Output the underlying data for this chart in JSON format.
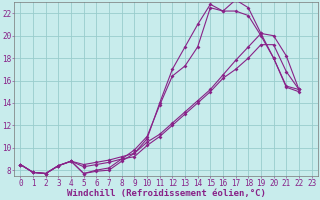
{
  "background_color": "#c8ecec",
  "line_color": "#882288",
  "grid_color": "#99cccc",
  "xlabel": "Windchill (Refroidissement éolien,°C)",
  "xlim": [
    -0.5,
    23.5
  ],
  "ylim": [
    7.5,
    23.0
  ],
  "xticks": [
    0,
    1,
    2,
    3,
    4,
    5,
    6,
    7,
    8,
    9,
    10,
    11,
    12,
    13,
    14,
    15,
    16,
    17,
    18,
    19,
    20,
    21,
    22,
    23
  ],
  "yticks": [
    8,
    10,
    12,
    14,
    16,
    18,
    20,
    22
  ],
  "series": [
    {
      "x": [
        0,
        1,
        2,
        3,
        4,
        5,
        6,
        7,
        8,
        9,
        10,
        11,
        12,
        13,
        14,
        15,
        16,
        17,
        18,
        19,
        20,
        21,
        22
      ],
      "y": [
        8.5,
        7.8,
        7.7,
        8.4,
        8.8,
        7.7,
        7.9,
        8.0,
        8.8,
        9.5,
        10.8,
        14.0,
        17.0,
        19.0,
        21.0,
        22.8,
        22.2,
        22.2,
        21.8,
        20.0,
        18.0,
        15.5,
        15.2
      ]
    },
    {
      "x": [
        0,
        1,
        2,
        3,
        4,
        5,
        6,
        7,
        8,
        9,
        10,
        11,
        12,
        13,
        14,
        15,
        16,
        17,
        18,
        19,
        20,
        21,
        22
      ],
      "y": [
        8.5,
        7.8,
        7.7,
        8.4,
        8.8,
        7.7,
        8.0,
        8.2,
        9.0,
        9.8,
        11.0,
        13.8,
        16.4,
        17.3,
        19.0,
        22.5,
        22.2,
        23.2,
        22.5,
        20.2,
        18.0,
        15.4,
        15.0
      ]
    },
    {
      "x": [
        0,
        1,
        2,
        3,
        4,
        5,
        6,
        7,
        8,
        9,
        10,
        11,
        12,
        13,
        14,
        15,
        16,
        17,
        18,
        19,
        20,
        21,
        22
      ],
      "y": [
        8.5,
        7.8,
        7.7,
        8.4,
        8.8,
        8.5,
        8.7,
        8.9,
        9.2,
        9.5,
        10.5,
        11.2,
        12.2,
        13.2,
        14.2,
        15.2,
        16.5,
        17.8,
        19.0,
        20.2,
        20.0,
        18.2,
        15.2
      ]
    },
    {
      "x": [
        0,
        1,
        2,
        3,
        4,
        5,
        6,
        7,
        8,
        9,
        10,
        11,
        12,
        13,
        14,
        15,
        16,
        17,
        18,
        19,
        20,
        21,
        22
      ],
      "y": [
        8.5,
        7.8,
        7.7,
        8.4,
        8.8,
        8.3,
        8.5,
        8.7,
        9.0,
        9.2,
        10.2,
        11.0,
        12.0,
        13.0,
        14.0,
        15.0,
        16.2,
        17.0,
        18.0,
        19.2,
        19.2,
        16.8,
        15.2
      ]
    }
  ],
  "xlabel_fontsize": 6.5,
  "tick_fontsize": 5.5
}
